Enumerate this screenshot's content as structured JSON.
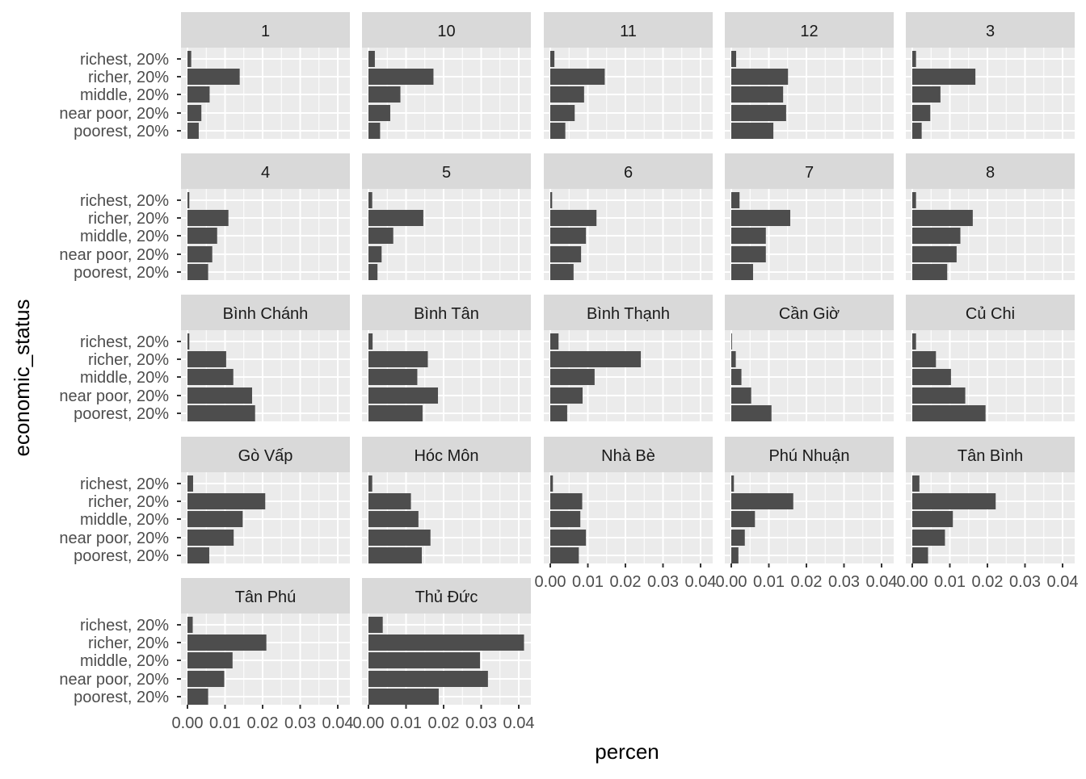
{
  "chart_data": {
    "type": "bar",
    "orientation": "horizontal",
    "faceted": true,
    "facet_columns": 5,
    "xlabel": "percen",
    "ylabel": "economic_status",
    "xlim": [
      0,
      0.04
    ],
    "x_ticks": [
      "0.00",
      "0.01",
      "0.02",
      "0.03",
      "0.04"
    ],
    "grid": true,
    "categories": [
      "richest, 20%",
      "richer, 20%",
      "middle, 20%",
      "near poor, 20%",
      "poorest, 20%"
    ],
    "colors": {
      "bar": "#4d4d4d",
      "panel_bg": "#ebebeb",
      "strip_bg": "#d9d9d9",
      "grid": "#ffffff",
      "text": "#4d4d4d"
    },
    "panels": [
      {
        "name": "1",
        "values": [
          0.001,
          0.0139,
          0.0059,
          0.0037,
          0.003
        ]
      },
      {
        "name": "10",
        "values": [
          0.0017,
          0.0173,
          0.0085,
          0.0058,
          0.0031
        ]
      },
      {
        "name": "11",
        "values": [
          0.0011,
          0.0145,
          0.009,
          0.0065,
          0.004
        ]
      },
      {
        "name": "12",
        "values": [
          0.0013,
          0.0151,
          0.0138,
          0.0146,
          0.0112
        ]
      },
      {
        "name": "3",
        "values": [
          0.001,
          0.0168,
          0.0075,
          0.0048,
          0.0025
        ]
      },
      {
        "name": "4",
        "values": [
          0.0005,
          0.0109,
          0.0079,
          0.0066,
          0.0055
        ]
      },
      {
        "name": "5",
        "values": [
          0.001,
          0.0146,
          0.0066,
          0.0035,
          0.0024
        ]
      },
      {
        "name": "6",
        "values": [
          0.0005,
          0.0123,
          0.0095,
          0.0082,
          0.0062
        ]
      },
      {
        "name": "7",
        "values": [
          0.0022,
          0.0157,
          0.0092,
          0.0092,
          0.0058
        ]
      },
      {
        "name": "8",
        "values": [
          0.001,
          0.0161,
          0.0128,
          0.0118,
          0.0093
        ]
      },
      {
        "name": "Bình Chánh",
        "values": [
          0.0005,
          0.0103,
          0.0122,
          0.0172,
          0.018
        ]
      },
      {
        "name": "Bình Tân",
        "values": [
          0.0011,
          0.0158,
          0.013,
          0.0185,
          0.0144
        ]
      },
      {
        "name": "Bình Thạnh",
        "values": [
          0.0022,
          0.0241,
          0.0118,
          0.0086,
          0.0045
        ]
      },
      {
        "name": "Cần Giờ",
        "values": [
          0.0002,
          0.0012,
          0.0027,
          0.0053,
          0.0107
        ]
      },
      {
        "name": "Củ Chi",
        "values": [
          0.001,
          0.0063,
          0.0103,
          0.0141,
          0.0195
        ]
      },
      {
        "name": "Gò Vấp",
        "values": [
          0.0015,
          0.0207,
          0.0147,
          0.0123,
          0.0058
        ]
      },
      {
        "name": "Hóc Môn",
        "values": [
          0.001,
          0.0113,
          0.0133,
          0.0165,
          0.0142
        ]
      },
      {
        "name": "Nhà Bè",
        "values": [
          0.0007,
          0.0085,
          0.008,
          0.0095,
          0.0076
        ]
      },
      {
        "name": "Phú Nhuận",
        "values": [
          0.0007,
          0.0165,
          0.0063,
          0.0036,
          0.0019
        ]
      },
      {
        "name": "Tân Bình",
        "values": [
          0.0019,
          0.0222,
          0.0108,
          0.0087,
          0.0042
        ]
      },
      {
        "name": "Tân Phú",
        "values": [
          0.0014,
          0.021,
          0.012,
          0.0098,
          0.0055
        ]
      },
      {
        "name": "Thủ Đức",
        "values": [
          0.0038,
          0.0414,
          0.0297,
          0.0318,
          0.0187
        ]
      }
    ]
  }
}
